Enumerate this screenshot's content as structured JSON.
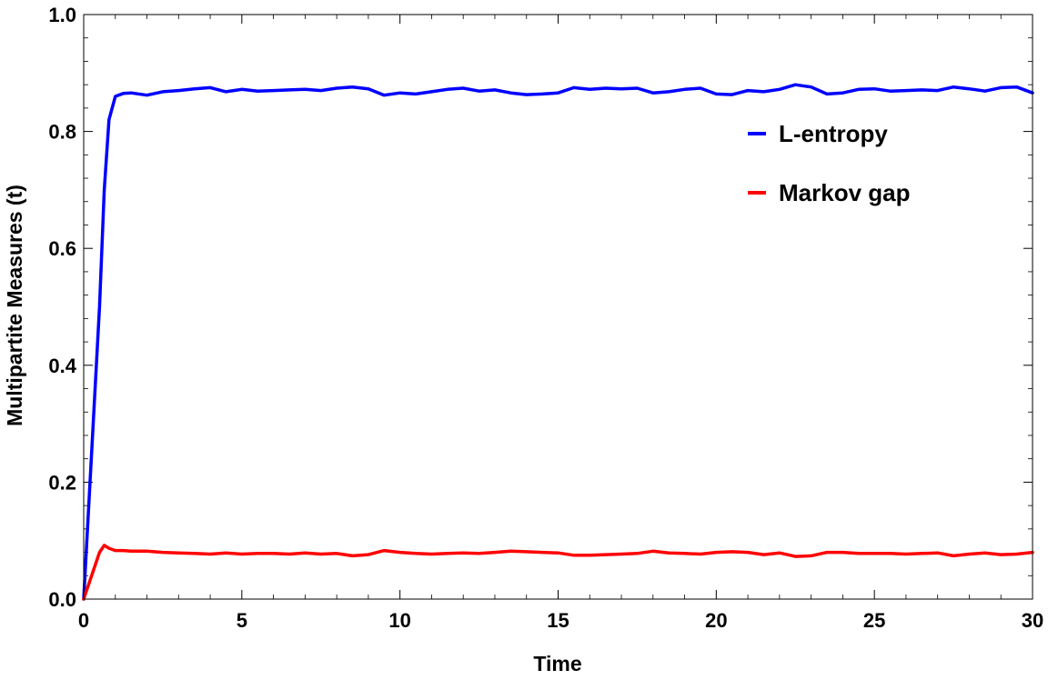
{
  "chart_data": {
    "type": "line",
    "title": "",
    "xlabel": "Time",
    "ylabel": "Multipartite Measures (t)",
    "xlim": [
      0,
      30
    ],
    "ylim": [
      0,
      1.0
    ],
    "x_ticks": [
      0,
      5,
      10,
      15,
      20,
      25,
      30
    ],
    "x_tick_labels": [
      "0",
      "5",
      "10",
      "15",
      "20",
      "25",
      "30"
    ],
    "y_ticks": [
      0,
      0.2,
      0.4,
      0.6,
      0.8,
      1.0
    ],
    "y_tick_labels": [
      "0.0",
      "0.2",
      "0.4",
      "0.6",
      "0.8",
      "1.0"
    ],
    "grid": false,
    "legend_position": "top-right",
    "x": [
      0,
      0.25,
      0.5,
      0.65,
      0.8,
      1.0,
      1.25,
      1.5,
      2,
      2.5,
      3,
      3.5,
      4,
      4.5,
      5,
      5.5,
      6,
      6.5,
      7,
      7.5,
      8,
      8.5,
      9,
      9.5,
      10,
      10.5,
      11,
      11.5,
      12,
      12.5,
      13,
      13.5,
      14,
      14.5,
      15,
      15.5,
      16,
      16.5,
      17,
      17.5,
      18,
      18.5,
      19,
      19.5,
      20,
      20.5,
      21,
      21.5,
      22,
      22.5,
      23,
      23.5,
      24,
      24.5,
      25,
      25.5,
      26,
      26.5,
      27,
      27.5,
      28,
      28.5,
      29,
      29.5,
      30
    ],
    "series": [
      {
        "name": "L-entropy",
        "color": "#0000ff",
        "values": [
          0,
          0.25,
          0.5,
          0.7,
          0.82,
          0.86,
          0.865,
          0.866,
          0.862,
          0.868,
          0.87,
          0.873,
          0.875,
          0.868,
          0.872,
          0.869,
          0.87,
          0.871,
          0.872,
          0.87,
          0.874,
          0.876,
          0.873,
          0.862,
          0.866,
          0.864,
          0.868,
          0.872,
          0.874,
          0.869,
          0.871,
          0.866,
          0.863,
          0.864,
          0.866,
          0.875,
          0.872,
          0.874,
          0.873,
          0.874,
          0.866,
          0.868,
          0.872,
          0.874,
          0.864,
          0.863,
          0.87,
          0.868,
          0.872,
          0.88,
          0.876,
          0.864,
          0.866,
          0.872,
          0.873,
          0.869,
          0.87,
          0.871,
          0.87,
          0.876,
          0.873,
          0.869,
          0.875,
          0.876,
          0.866
        ]
      },
      {
        "name": "Markov gap",
        "color": "#ff0000",
        "values": [
          0,
          0.04,
          0.08,
          0.092,
          0.087,
          0.083,
          0.083,
          0.082,
          0.082,
          0.08,
          0.079,
          0.078,
          0.077,
          0.079,
          0.077,
          0.078,
          0.078,
          0.077,
          0.079,
          0.077,
          0.078,
          0.074,
          0.076,
          0.083,
          0.08,
          0.078,
          0.077,
          0.078,
          0.079,
          0.078,
          0.08,
          0.082,
          0.081,
          0.08,
          0.079,
          0.075,
          0.075,
          0.076,
          0.077,
          0.078,
          0.082,
          0.079,
          0.078,
          0.077,
          0.08,
          0.081,
          0.08,
          0.076,
          0.079,
          0.073,
          0.074,
          0.08,
          0.08,
          0.078,
          0.078,
          0.078,
          0.077,
          0.078,
          0.079,
          0.074,
          0.077,
          0.079,
          0.076,
          0.077,
          0.08
        ]
      }
    ]
  }
}
